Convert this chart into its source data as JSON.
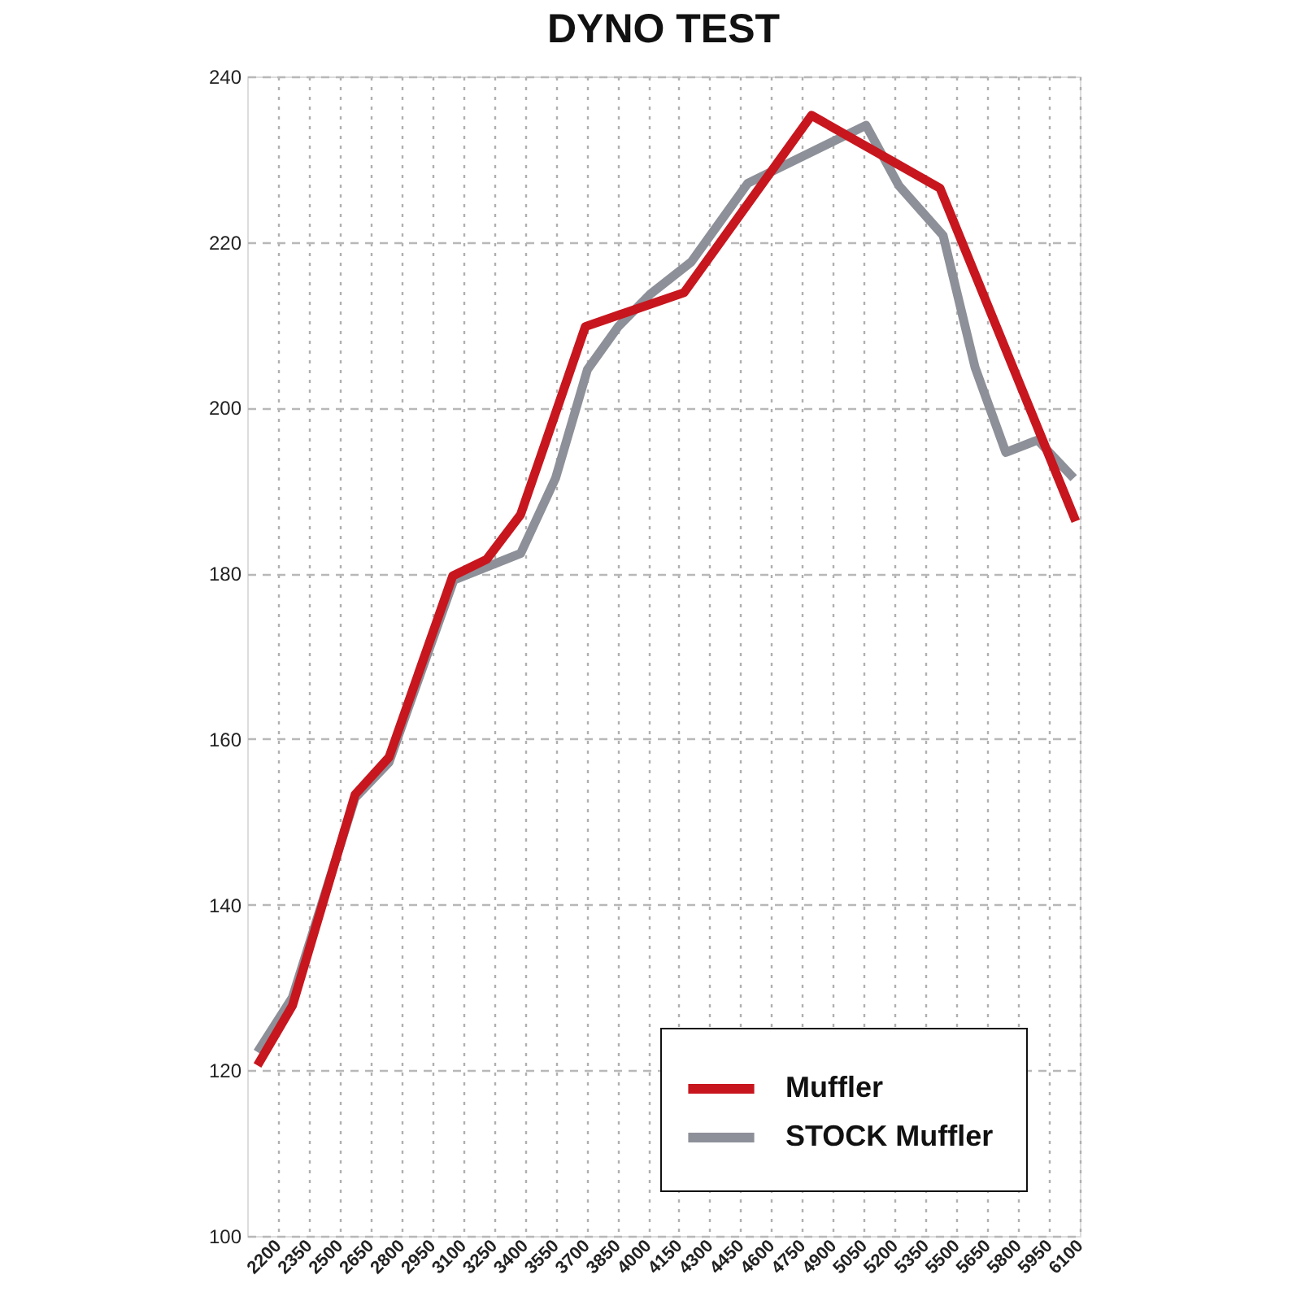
{
  "chart_data": {
    "type": "line",
    "title": "DYNO TEST",
    "xlim": [
      2050,
      6100
    ],
    "xticks": [
      2200,
      2350,
      2500,
      2650,
      2800,
      2950,
      3100,
      3250,
      3400,
      3550,
      3700,
      3850,
      4000,
      4150,
      4300,
      4450,
      4600,
      4750,
      4900,
      5050,
      5200,
      5350,
      5500,
      5650,
      5800,
      5950,
      6100
    ],
    "ylim": [
      100,
      240
    ],
    "yticks": [
      100,
      120,
      140,
      160,
      180,
      200,
      220,
      240
    ],
    "grid": true,
    "legend": "bottom right",
    "line_style": "solid",
    "series": [
      {
        "name": "Muffler",
        "color": "#c8161e",
        "x": [
          2100,
          2270,
          2575,
          2740,
          3050,
          3215,
          3380,
          3695,
          4175,
          4795,
          5420,
          6080
        ],
        "values": [
          120.6,
          127.8,
          153.3,
          157.8,
          179.7,
          181.7,
          187.1,
          209.8,
          213.9,
          235.3,
          226.5,
          186.3
        ]
      },
      {
        "name": "STOCK Muffler",
        "color": "#8d9098",
        "x": [
          2100,
          2270,
          2575,
          2740,
          3055,
          3380,
          3550,
          3705,
          3855,
          4010,
          4210,
          4485,
          5060,
          5220,
          5435,
          5590,
          5740,
          5895,
          6070
        ],
        "values": [
          122.2,
          128.8,
          152.9,
          157.2,
          179.2,
          182.4,
          191.5,
          204.6,
          209.8,
          213.7,
          217.6,
          227.1,
          234.1,
          226.8,
          220.8,
          204.9,
          194.6,
          196.1,
          191.5
        ]
      }
    ]
  }
}
